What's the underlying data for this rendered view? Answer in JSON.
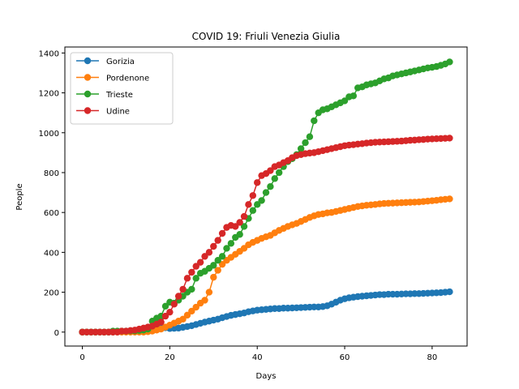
{
  "chart_data": {
    "type": "line",
    "title": "COVID 19: Friuli Venezia Giulia",
    "xlabel": "Days",
    "ylabel": "People",
    "xlim": [
      -4,
      88
    ],
    "ylim": [
      -70,
      1430
    ],
    "xticks": [
      0,
      20,
      40,
      60,
      80
    ],
    "yticks": [
      0,
      200,
      400,
      600,
      800,
      1000,
      1200,
      1400
    ],
    "grid": false,
    "legend_position": "top-left",
    "x": [
      0,
      1,
      2,
      3,
      4,
      5,
      6,
      7,
      8,
      9,
      10,
      11,
      12,
      13,
      14,
      15,
      16,
      17,
      18,
      19,
      20,
      21,
      22,
      23,
      24,
      25,
      26,
      27,
      28,
      29,
      30,
      31,
      32,
      33,
      34,
      35,
      36,
      37,
      38,
      39,
      40,
      41,
      42,
      43,
      44,
      45,
      46,
      47,
      48,
      49,
      50,
      51,
      52,
      53,
      54,
      55,
      56,
      57,
      58,
      59,
      60,
      61,
      62,
      63,
      64,
      65,
      66,
      67,
      68,
      69,
      70,
      71,
      72,
      73,
      74,
      75,
      76,
      77,
      78,
      79,
      80,
      81,
      82,
      83,
      84
    ],
    "series": [
      {
        "name": "Gorizia",
        "color": "#1f77b4",
        "values": [
          0,
          0,
          0,
          0,
          0,
          0,
          0,
          0,
          2,
          4,
          5,
          6,
          7,
          8,
          10,
          12,
          15,
          18,
          20,
          22,
          18,
          19,
          20,
          24,
          28,
          32,
          38,
          44,
          50,
          55,
          60,
          65,
          72,
          78,
          84,
          88,
          92,
          96,
          102,
          106,
          110,
          112,
          114,
          116,
          118,
          118,
          120,
          120,
          121,
          122,
          123,
          124,
          125,
          126,
          126,
          128,
          132,
          140,
          150,
          160,
          167,
          172,
          175,
          178,
          180,
          182,
          184,
          186,
          188,
          188,
          190,
          190,
          190,
          191,
          192,
          192,
          193,
          193,
          194,
          195,
          196,
          197,
          198,
          200,
          202
        ]
      },
      {
        "name": "Pordenone",
        "color": "#ff7f0e",
        "values": [
          0,
          0,
          0,
          0,
          0,
          0,
          0,
          0,
          0,
          0,
          0,
          0,
          0,
          0,
          0,
          2,
          5,
          10,
          15,
          25,
          35,
          45,
          55,
          65,
          85,
          105,
          125,
          145,
          160,
          200,
          275,
          310,
          340,
          360,
          375,
          390,
          405,
          420,
          438,
          450,
          460,
          470,
          478,
          485,
          498,
          510,
          520,
          530,
          538,
          545,
          555,
          565,
          575,
          583,
          590,
          593,
          598,
          600,
          605,
          610,
          615,
          620,
          625,
          630,
          633,
          636,
          638,
          640,
          643,
          645,
          646,
          647,
          648,
          649,
          650,
          651,
          652,
          653,
          655,
          657,
          659,
          661,
          664,
          666,
          668
        ]
      },
      {
        "name": "Trieste",
        "color": "#2ca02c",
        "values": [
          0,
          0,
          0,
          0,
          0,
          0,
          0,
          5,
          5,
          5,
          5,
          6,
          6,
          8,
          10,
          15,
          55,
          70,
          80,
          130,
          150,
          145,
          160,
          180,
          200,
          215,
          270,
          295,
          305,
          320,
          335,
          360,
          380,
          420,
          445,
          475,
          490,
          530,
          570,
          610,
          640,
          660,
          700,
          730,
          770,
          800,
          830,
          855,
          870,
          890,
          920,
          950,
          980,
          1060,
          1100,
          1115,
          1120,
          1130,
          1140,
          1150,
          1160,
          1180,
          1185,
          1225,
          1230,
          1240,
          1245,
          1250,
          1260,
          1270,
          1275,
          1285,
          1290,
          1295,
          1300,
          1305,
          1310,
          1315,
          1320,
          1325,
          1328,
          1332,
          1338,
          1345,
          1355
        ]
      },
      {
        "name": "Udine",
        "color": "#d62728",
        "values": [
          0,
          0,
          0,
          0,
          0,
          0,
          0,
          0,
          0,
          5,
          5,
          8,
          10,
          15,
          20,
          25,
          30,
          40,
          50,
          80,
          100,
          140,
          180,
          215,
          270,
          300,
          330,
          350,
          380,
          400,
          430,
          460,
          495,
          525,
          535,
          530,
          550,
          580,
          640,
          685,
          750,
          785,
          795,
          810,
          830,
          838,
          850,
          860,
          875,
          885,
          890,
          895,
          898,
          900,
          905,
          910,
          915,
          920,
          925,
          930,
          935,
          938,
          940,
          943,
          945,
          948,
          950,
          952,
          953,
          954,
          955,
          956,
          957,
          958,
          960,
          962,
          963,
          965,
          966,
          968,
          969,
          970,
          971,
          972,
          973
        ]
      }
    ]
  }
}
